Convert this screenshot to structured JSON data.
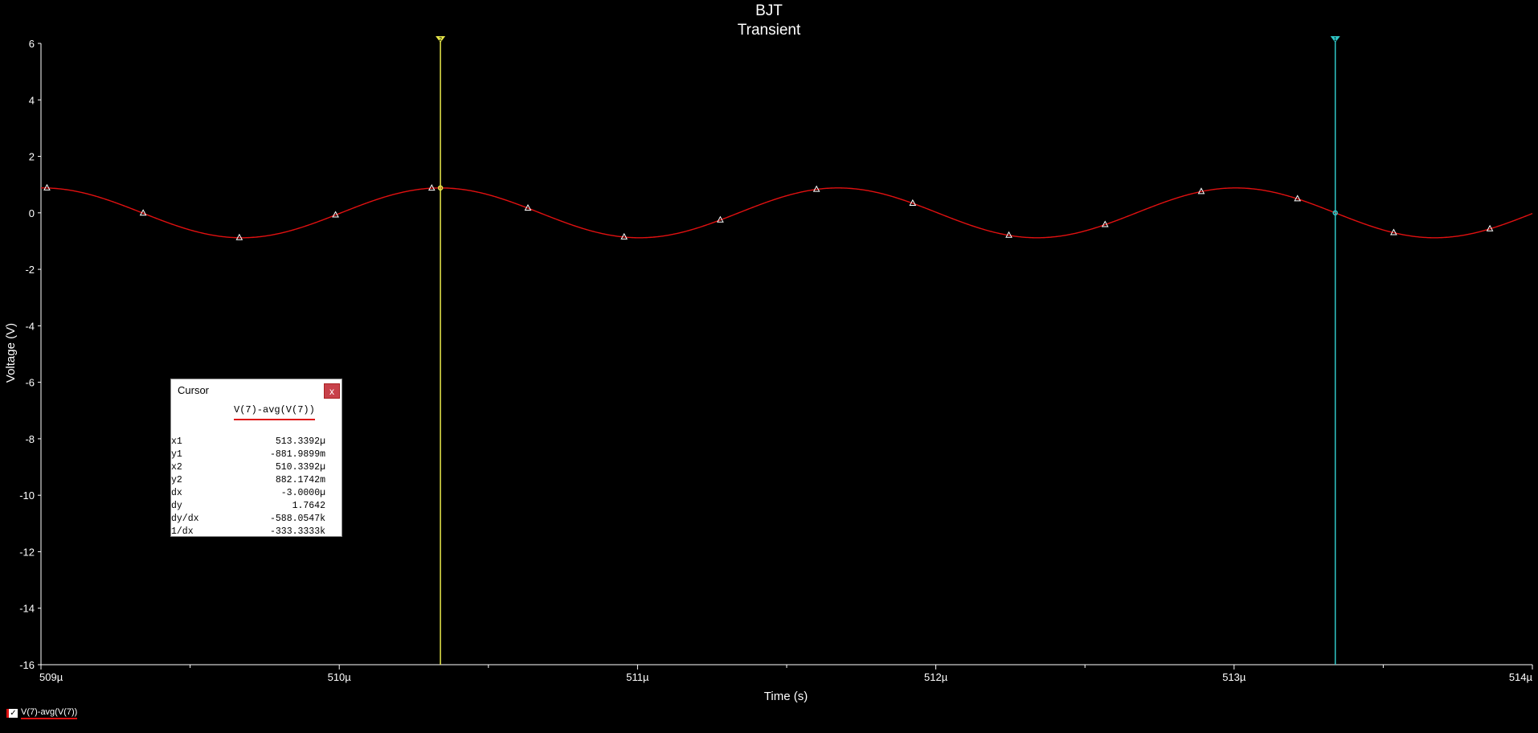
{
  "chart_data": {
    "type": "line",
    "title": "BJT",
    "subtitle": "Transient",
    "xlabel": "Time (s)",
    "ylabel": "Voltage (V)",
    "xlim": [
      509,
      514
    ],
    "ylim": [
      -16,
      6
    ],
    "x_ticks": [
      509,
      510,
      511,
      512,
      513,
      514
    ],
    "x_tick_labels": [
      "509µ",
      "510µ",
      "511µ",
      "512µ",
      "513µ",
      "514µ"
    ],
    "y_ticks": [
      6,
      4,
      2,
      0,
      -2,
      -4,
      -6,
      -8,
      -10,
      -12,
      -14,
      -16
    ],
    "y_tick_labels": [
      "6",
      "4",
      "2",
      "0",
      "-2",
      "-4",
      "-6",
      "-8",
      "-10",
      "-12",
      "-14",
      "-16"
    ],
    "grid": false,
    "series": [
      {
        "name": "V(7)-avg(V(7))",
        "color": "#e01010",
        "amplitude": 0.882,
        "period_us": 1.3333,
        "peak_at_us": 510.3392,
        "marker": "triangle"
      }
    ],
    "cursors": [
      {
        "label": "2",
        "x": 510.3392,
        "color": "#e8e84a"
      },
      {
        "label": "1",
        "x": 513.3392,
        "color": "#30c8c8"
      }
    ]
  },
  "cursor_panel": {
    "title": "Cursor",
    "close": "x",
    "trace": "V(7)-avg(V(7))",
    "rows": [
      {
        "k": "x1",
        "v": "513.3392µ"
      },
      {
        "k": "y1",
        "v": "-881.9899m"
      },
      {
        "k": "x2",
        "v": "510.3392µ"
      },
      {
        "k": "y2",
        "v": "882.1742m"
      },
      {
        "k": "dx",
        "v": "-3.0000µ"
      },
      {
        "k": "dy",
        "v": "1.7642"
      },
      {
        "k": "dy/dx",
        "v": "-588.0547k"
      },
      {
        "k": "1/dx",
        "v": "-333.3333k"
      }
    ]
  },
  "legend": {
    "check": "✓",
    "label": "V(7)-avg(V(7))",
    "color": "#e01010"
  }
}
